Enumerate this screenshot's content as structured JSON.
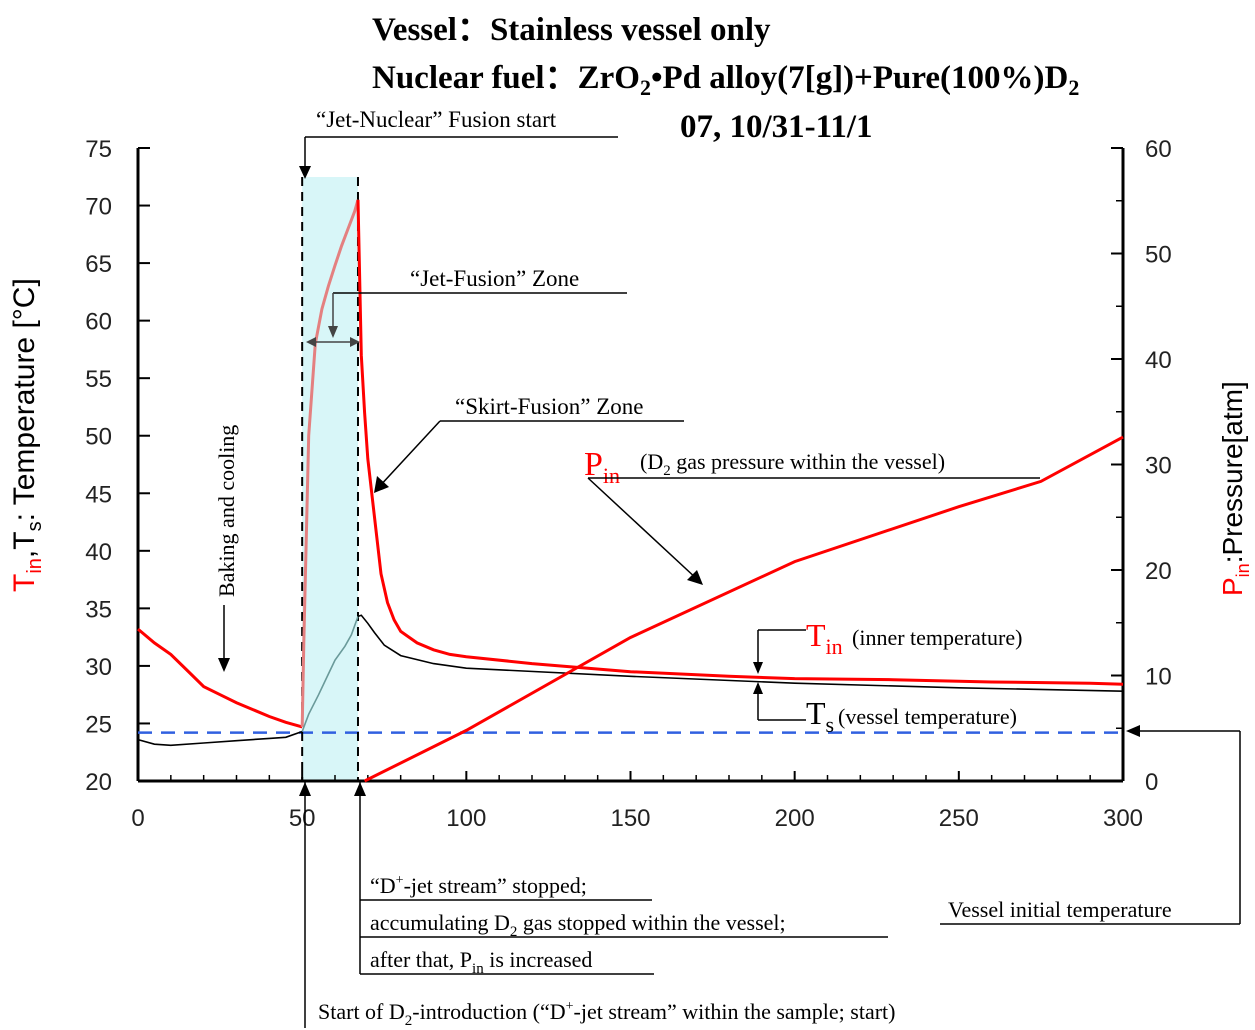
{
  "header": {
    "vessel_label": "Vessel",
    "vessel_value": "Stainless vessel only",
    "fuel_label": "Nuclear fuel",
    "fuel_pre": "ZrO",
    "fuel_sub1": "2",
    "fuel_mid": "•Pd alloy(7[g])+Pure(100%)D",
    "fuel_sub2": "2",
    "date": "07, 10/31-11/1",
    "colon": "："
  },
  "axes": {
    "left_label_t": "T",
    "left_label_in": "in",
    "left_label_rest1": ",T",
    "left_label_s": "s",
    "left_label_rest2": ": Temperature [°C]",
    "right_label_p": "P",
    "right_label_in": "in",
    "right_label_rest": ":Pressure[atm]"
  },
  "annotations": {
    "fusion_start": "“Jet-Nuclear” Fusion start",
    "jet_zone": "“Jet-Fusion” Zone",
    "skirt_zone": "“Skirt-Fusion” Zone",
    "baking": "Baking and cooling",
    "pin_P": "P",
    "pin_in": "in",
    "pin_desc_pre": "(D",
    "pin_desc_sub": "2",
    "pin_desc_post": " gas pressure within the vessel)",
    "tin_T": "T",
    "tin_in": "in",
    "tin_desc": " (inner temperature)",
    "ts_T": "T",
    "ts_s": "s",
    "ts_desc": "(vessel temperature)",
    "stopped_line1_pre": "“D",
    "stopped_line1_sup": "+",
    "stopped_line1_post": "-jet stream” stopped;",
    "stopped_line2_pre": "accumulating D",
    "stopped_line2_sub": "2",
    "stopped_line2_post": " gas stopped within the vessel;",
    "stopped_line3_pre": "after that, P",
    "stopped_line3_sub": "in",
    "stopped_line3_post": " is increased",
    "initial_temp": "Vessel initial temperature",
    "intro_pre": "Start of D",
    "intro_sub": "2",
    "intro_mid": "-introduction (“D",
    "intro_sup": "+",
    "intro_post": "-jet stream” within the sample; start)"
  },
  "colors": {
    "tin": "#ff0000",
    "tin_light": "#e48080",
    "pressure": "#ff0000",
    "ts": "#000000",
    "baseline": "#3060e0",
    "zone": "#d8f6f8"
  },
  "chart_data": {
    "type": "line",
    "xlim": [
      0,
      300
    ],
    "ylim_left": [
      20,
      75
    ],
    "ylim_right": [
      0,
      60
    ],
    "x_ticks": [
      0,
      50,
      100,
      150,
      200,
      250,
      300
    ],
    "y_left_ticks": [
      20,
      25,
      30,
      35,
      40,
      45,
      50,
      55,
      60,
      65,
      70,
      75
    ],
    "y_right_ticks": [
      0,
      10,
      20,
      30,
      40,
      50,
      60
    ],
    "jet_fusion_zone": [
      50,
      67
    ],
    "vessel_initial_temperature": 24.2,
    "series": [
      {
        "name": "Tin",
        "axis": "left",
        "x": [
          0,
          5,
          10,
          15,
          20,
          25,
          30,
          35,
          40,
          45,
          50,
          50.5,
          52,
          54,
          56,
          58,
          60,
          62,
          64,
          66,
          67,
          68,
          69,
          70,
          72,
          74,
          76,
          78,
          80,
          85,
          90,
          95,
          100,
          120,
          150,
          180,
          200,
          230,
          260,
          290,
          300
        ],
        "y": [
          33.2,
          32,
          31,
          29.6,
          28.2,
          27.5,
          26.8,
          26.2,
          25.6,
          25.1,
          24.7,
          32,
          50,
          58,
          61,
          63,
          64.8,
          66.5,
          68,
          69.5,
          70.5,
          57,
          52,
          48,
          43,
          38,
          35.5,
          34,
          33,
          32,
          31.4,
          31,
          30.8,
          30.2,
          29.5,
          29.1,
          28.9,
          28.8,
          28.6,
          28.5,
          28.4
        ]
      },
      {
        "name": "Ts",
        "axis": "left",
        "x": [
          0,
          5,
          10,
          20,
          30,
          40,
          45,
          50,
          52,
          55,
          58,
          60,
          63,
          65,
          67,
          68,
          70,
          72,
          75,
          80,
          90,
          100,
          150,
          200,
          250,
          300
        ],
        "y": [
          23.6,
          23.2,
          23.1,
          23.3,
          23.5,
          23.7,
          23.8,
          24.3,
          25.8,
          27.5,
          29.3,
          30.5,
          31.7,
          32.7,
          34.3,
          34.4,
          33.7,
          32.9,
          31.8,
          30.9,
          30.2,
          29.8,
          29.1,
          28.5,
          28.1,
          27.8
        ]
      },
      {
        "name": "Pin",
        "axis": "right",
        "x": [
          69,
          100,
          150,
          200,
          250,
          275,
          300
        ],
        "y": [
          0,
          4.8,
          13.6,
          20.8,
          26,
          28.4,
          32.6
        ]
      }
    ]
  }
}
